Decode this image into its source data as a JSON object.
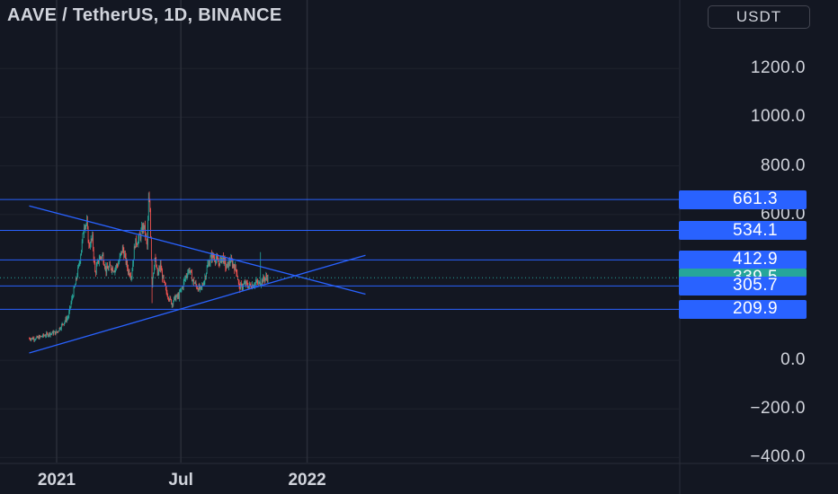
{
  "header": {
    "title": "AAVE / TetherUS, 1D, BINANCE",
    "currency_button": "USDT"
  },
  "price_scale": {
    "ticks": [
      {
        "value": 1200,
        "label": "1200.0"
      },
      {
        "value": 1000,
        "label": "1000.0"
      },
      {
        "value": 800,
        "label": "800.0"
      },
      {
        "value": 600,
        "label": "600.0"
      },
      {
        "value": 0,
        "label": "0.0"
      },
      {
        "value": -200,
        "label": "−200.0"
      },
      {
        "value": -400,
        "label": "−400.0"
      }
    ],
    "labels": [
      {
        "value": 661.3,
        "label": "661.3",
        "color": "#2962ff"
      },
      {
        "value": 534.1,
        "label": "534.1",
        "color": "#2962ff"
      },
      {
        "value": 412.9,
        "label": "412.9",
        "color": "#2962ff"
      },
      {
        "value": 339.5,
        "label": "339.5",
        "color": "#26a69a"
      },
      {
        "value": 305.7,
        "label": "305.7",
        "color": "#2962ff"
      },
      {
        "value": 209.9,
        "label": "209.9",
        "color": "#2962ff"
      }
    ]
  },
  "time_scale": {
    "ticks": [
      {
        "day": 0,
        "label": "2021"
      },
      {
        "day": 181,
        "label": "Jul"
      },
      {
        "day": 365,
        "label": "2022"
      }
    ]
  },
  "chart_data": {
    "type": "candlestick",
    "symbol": "AAVE / TetherUS",
    "interval": "1D",
    "exchange": "BINANCE",
    "currency": "USDT",
    "ylim": [
      -430,
      1370
    ],
    "last_price": 339.5,
    "horizontal_levels": [
      661.3,
      534.1,
      412.9,
      305.7,
      209.9
    ],
    "trendlines": [
      {
        "from": {
          "day": -40,
          "price": 635
        },
        "to": {
          "day": 450,
          "price": 272
        }
      },
      {
        "from": {
          "day": -40,
          "price": 30
        },
        "to": {
          "day": 450,
          "price": 432
        }
      }
    ],
    "anchors": [
      [
        -40,
        90
      ],
      [
        -30,
        90
      ],
      [
        -20,
        100
      ],
      [
        -10,
        110
      ],
      [
        0,
        115
      ],
      [
        10,
        155
      ],
      [
        17,
        180
      ],
      [
        22,
        250
      ],
      [
        27,
        310
      ],
      [
        33,
        400
      ],
      [
        37,
        480
      ],
      [
        40,
        560
      ],
      [
        44,
        560
      ],
      [
        47,
        470
      ],
      [
        52,
        500
      ],
      [
        56,
        360
      ],
      [
        62,
        420
      ],
      [
        67,
        430
      ],
      [
        72,
        370
      ],
      [
        78,
        385
      ],
      [
        84,
        375
      ],
      [
        90,
        400
      ],
      [
        96,
        460
      ],
      [
        100,
        420
      ],
      [
        104,
        370
      ],
      [
        109,
        350
      ],
      [
        114,
        480
      ],
      [
        120,
        500
      ],
      [
        127,
        555
      ],
      [
        132,
        470
      ],
      [
        134,
        660
      ],
      [
        136,
        620
      ],
      [
        139,
        320
      ],
      [
        143,
        420
      ],
      [
        147,
        350
      ],
      [
        151,
        390
      ],
      [
        156,
        320
      ],
      [
        160,
        280
      ],
      [
        165,
        250
      ],
      [
        168,
        235
      ],
      [
        172,
        255
      ],
      [
        178,
        265
      ],
      [
        183,
        300
      ],
      [
        188,
        345
      ],
      [
        193,
        375
      ],
      [
        198,
        330
      ],
      [
        205,
        300
      ],
      [
        210,
        290
      ],
      [
        215,
        330
      ],
      [
        220,
        390
      ],
      [
        226,
        430
      ],
      [
        231,
        420
      ],
      [
        236,
        400
      ],
      [
        242,
        425
      ],
      [
        247,
        380
      ],
      [
        253,
        410
      ],
      [
        258,
        390
      ],
      [
        262,
        370
      ],
      [
        266,
        300
      ],
      [
        270,
        305
      ],
      [
        275,
        315
      ],
      [
        280,
        305
      ],
      [
        285,
        310
      ],
      [
        290,
        320
      ],
      [
        295,
        315
      ],
      [
        300,
        330
      ],
      [
        305,
        340
      ],
      [
        308,
        339.5
      ]
    ],
    "spikes": [
      {
        "day": 297,
        "high": 445
      },
      {
        "day": 134,
        "high": 690
      },
      {
        "day": 139,
        "low": 235
      },
      {
        "day": 168,
        "low": 215
      }
    ]
  }
}
